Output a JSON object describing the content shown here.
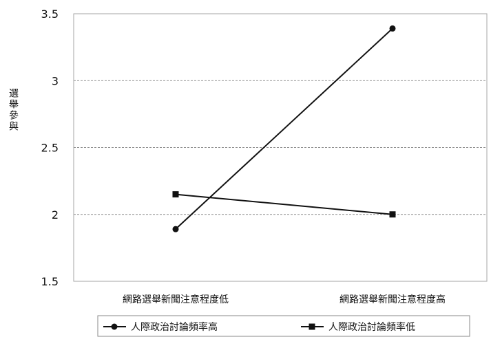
{
  "chart_data": {
    "type": "line",
    "title": "",
    "xlabel": "",
    "ylabel": "選舉參與",
    "ylim": [
      1.5,
      3.5
    ],
    "yticks": [
      1.5,
      2,
      2.5,
      3,
      3.5
    ],
    "ytick_labels": [
      "1.5",
      "2",
      "2.5",
      "3",
      "3.5"
    ],
    "categories": [
      "網路選舉新聞注意程度低",
      "網路選舉新聞注意程度高"
    ],
    "grid": "horizontal dashed",
    "legend_position": "bottom",
    "series": [
      {
        "name": "人際政治討論頻率高",
        "marker": "circle",
        "values": [
          1.89,
          3.39
        ]
      },
      {
        "name": "人際政治討論頻率低",
        "marker": "square",
        "values": [
          2.15,
          2.0
        ]
      }
    ]
  }
}
